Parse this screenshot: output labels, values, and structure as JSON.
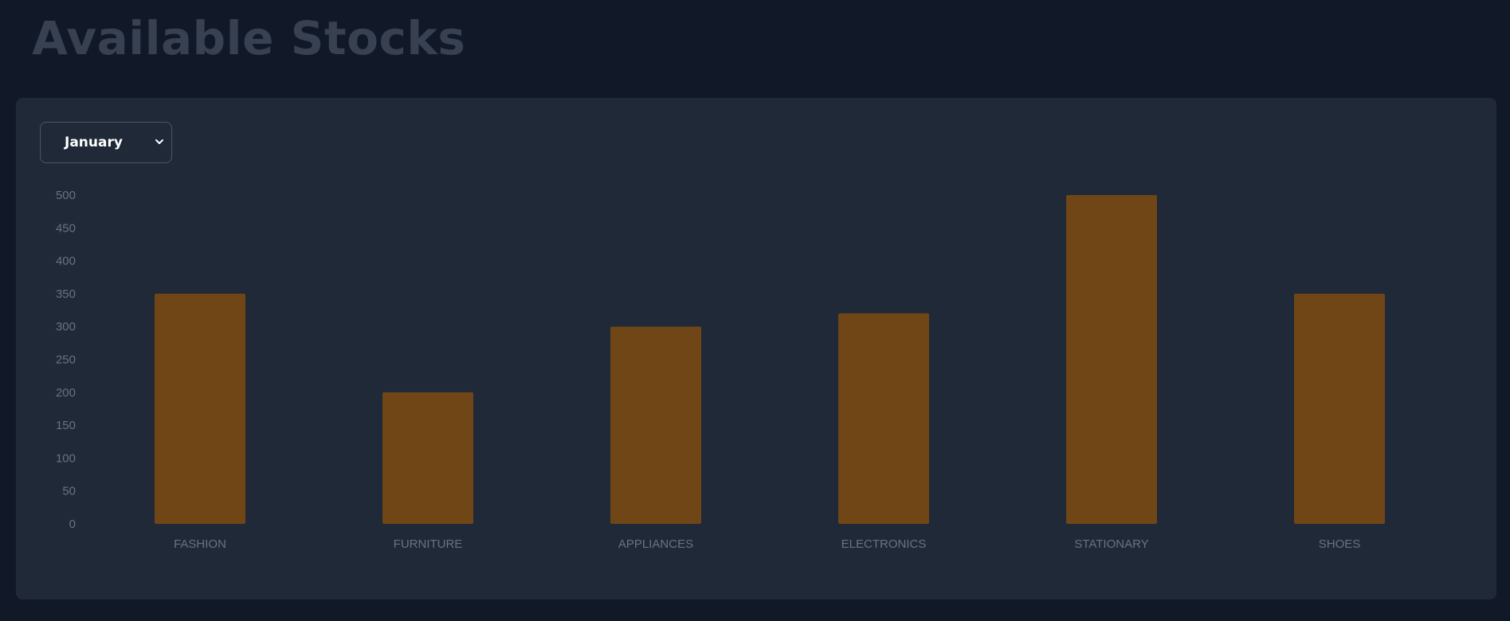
{
  "header": {
    "title": "Available Stocks"
  },
  "filter": {
    "selected_month": "January",
    "chevron_icon": "chevron-down-icon"
  },
  "colors": {
    "bar": "#704616",
    "card": "#1f2937",
    "background": "#111827"
  },
  "chart_data": {
    "type": "bar",
    "categories": [
      "FASHION",
      "FURNITURE",
      "APPLIANCES",
      "ELECTRONICS",
      "STATIONARY",
      "SHOES"
    ],
    "values": [
      350,
      200,
      300,
      320,
      500,
      350
    ],
    "yticks": [
      "0",
      "50",
      "100",
      "150",
      "200",
      "250",
      "300",
      "350",
      "400",
      "450",
      "500"
    ],
    "ylim": [
      0,
      500
    ],
    "title": "",
    "xlabel": "",
    "ylabel": "",
    "grid": false,
    "legend": false
  }
}
